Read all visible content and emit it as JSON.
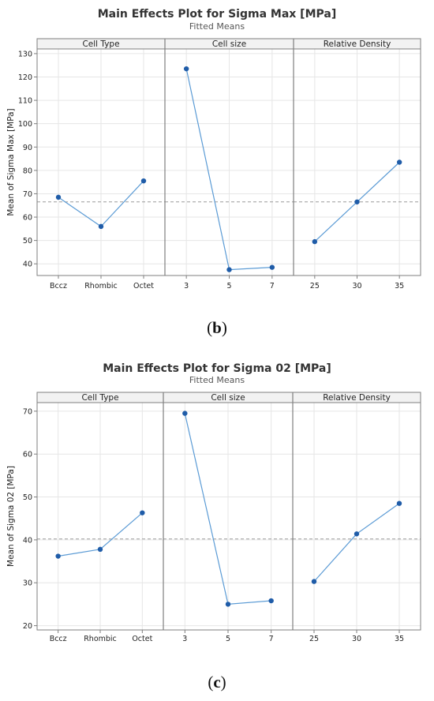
{
  "colors": {
    "line": "#5b9bd5",
    "point": "#1f5ca8",
    "reference": "#9a9a9a",
    "grid": "#e6e6e6",
    "frame": "#7f7f7f",
    "header_bg": "#f2f2f2"
  },
  "chart_data": [
    {
      "type": "line",
      "title": "Main Effects Plot for Sigma Max [MPa]",
      "subtitle": "Fitted Means",
      "ylabel": "Mean of Sigma Max [MPa]",
      "ylim": [
        35,
        132
      ],
      "yticks": [
        40,
        50,
        60,
        70,
        80,
        90,
        100,
        110,
        120,
        130
      ],
      "reference_line": 66.5,
      "grid": true,
      "panels": [
        {
          "name": "Cell Type",
          "categories": [
            "Bccz",
            "Rhombic",
            "Octet"
          ],
          "values": [
            68.5,
            56,
            75.5
          ]
        },
        {
          "name": "Cell size",
          "categories": [
            "3",
            "5",
            "7"
          ],
          "values": [
            123.5,
            37.5,
            38.5
          ]
        },
        {
          "name": "Relative Density",
          "categories": [
            "25",
            "30",
            "35"
          ],
          "values": [
            49.5,
            66.5,
            83.5
          ]
        }
      ],
      "caption_open": "(",
      "caption_letter": "b",
      "caption_close": ")"
    },
    {
      "type": "line",
      "title": "Main Effects Plot for Sigma 02 [MPa]",
      "subtitle": "Fitted Means",
      "ylabel": "Mean of Sigma 02 [MPa]",
      "ylim": [
        19,
        72
      ],
      "yticks": [
        20,
        30,
        40,
        50,
        60,
        70
      ],
      "reference_line": 40.2,
      "grid": true,
      "panels": [
        {
          "name": "Cell Type",
          "categories": [
            "Bccz",
            "Rhombic",
            "Octet"
          ],
          "values": [
            36.2,
            37.8,
            46.3
          ]
        },
        {
          "name": "Cell size",
          "categories": [
            "3",
            "5",
            "7"
          ],
          "values": [
            69.5,
            25,
            25.8
          ]
        },
        {
          "name": "Relative Density",
          "categories": [
            "25",
            "30",
            "35"
          ],
          "values": [
            30.3,
            41.4,
            48.5
          ]
        }
      ],
      "caption_open": "(",
      "caption_letter": "c",
      "caption_close": ")"
    }
  ]
}
